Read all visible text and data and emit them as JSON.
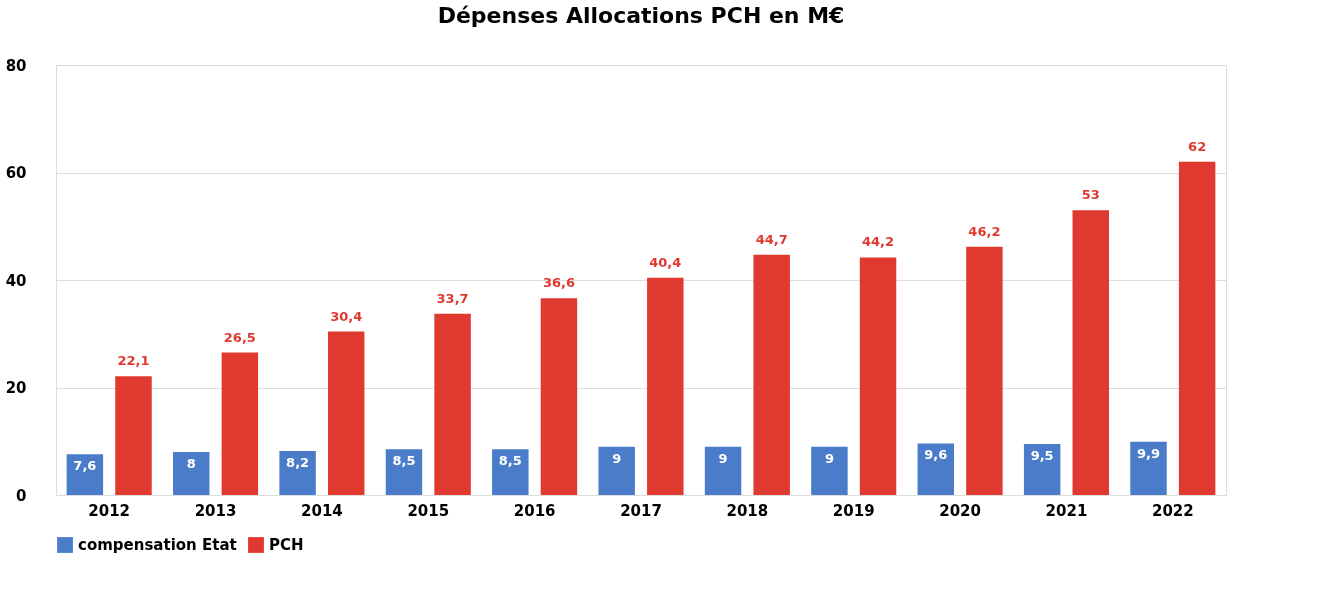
{
  "chart_data": {
    "type": "bar",
    "title": "Dépenses Allocations PCH en M€",
    "categories": [
      "2012",
      "2013",
      "2014",
      "2015",
      "2016",
      "2017",
      "2018",
      "2019",
      "2020",
      "2021",
      "2022"
    ],
    "series": [
      {
        "name": "compensation Etat",
        "color": "#4a7cc9",
        "values": [
          7.6,
          8,
          8.2,
          8.5,
          8.5,
          9,
          9,
          9,
          9.6,
          9.5,
          9.9
        ],
        "value_labels": [
          "7,6",
          "8",
          "8,2",
          "8,5",
          "8,5",
          "9",
          "9",
          "9",
          "9,6",
          "9,5",
          "9,9"
        ]
      },
      {
        "name": "PCH",
        "color": "#e0392f",
        "values": [
          22.1,
          26.5,
          30.4,
          33.7,
          36.6,
          40.4,
          44.7,
          44.2,
          46.2,
          53,
          62
        ],
        "value_labels": [
          "22,1",
          "26,5",
          "30,4",
          "33,7",
          "36,6",
          "40,4",
          "44,7",
          "44,2",
          "46,2",
          "53",
          "62"
        ]
      }
    ],
    "ylim": [
      0,
      80
    ],
    "yticks": [
      0,
      20,
      40,
      60,
      80
    ],
    "grid": "y",
    "legend": "bottom"
  }
}
